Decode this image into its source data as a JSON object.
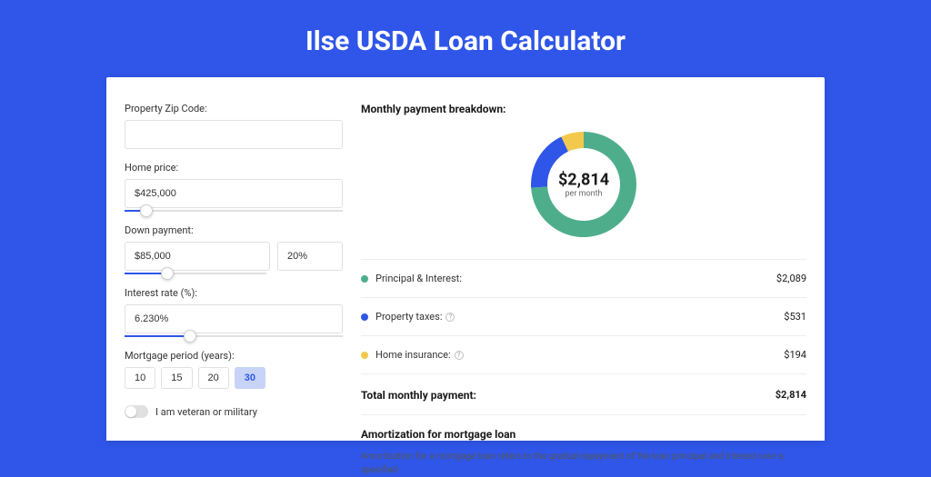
{
  "page": {
    "title": "Ilse USDA Loan Calculator",
    "background_color": "#2f56e8",
    "card_background": "#ffffff"
  },
  "form": {
    "zip": {
      "label": "Property Zip Code:",
      "value": ""
    },
    "home_price": {
      "label": "Home price:",
      "value": "$425,000",
      "slider_pct": 10
    },
    "down_payment": {
      "label": "Down payment:",
      "amount": "$85,000",
      "pct": "20%",
      "slider_pct": 20
    },
    "interest": {
      "label": "Interest rate (%):",
      "value": "6.230%",
      "slider_pct": 30
    },
    "period": {
      "label": "Mortgage period (years):",
      "options": [
        "10",
        "15",
        "20",
        "30"
      ],
      "selected": "30"
    },
    "veteran": {
      "label": "I am veteran or military",
      "checked": false
    }
  },
  "breakdown": {
    "title": "Monthly payment breakdown:",
    "center_amount": "$2,814",
    "center_sub": "per month",
    "items": [
      {
        "label": "Principal & Interest:",
        "value": "$2,089",
        "color": "#4eae8c",
        "info": false,
        "pct": 74
      },
      {
        "label": "Property taxes:",
        "value": "$531",
        "color": "#2f56e8",
        "info": true,
        "pct": 19
      },
      {
        "label": "Home insurance:",
        "value": "$194",
        "color": "#f2c94c",
        "info": true,
        "pct": 7
      }
    ],
    "total_label": "Total monthly payment:",
    "total_value": "$2,814"
  },
  "amortization": {
    "title": "Amortization for mortgage loan",
    "text": "Amortization for a mortgage loan refers to the gradual repayment of the loan principal and interest over a specified"
  },
  "chart": {
    "type": "donut",
    "size": 120,
    "thickness": 18,
    "background_color": "#ffffff"
  }
}
